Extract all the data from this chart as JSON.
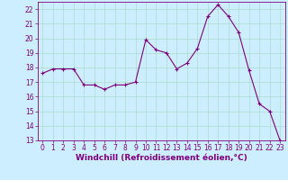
{
  "x": [
    0,
    1,
    2,
    3,
    4,
    5,
    6,
    7,
    8,
    9,
    10,
    11,
    12,
    13,
    14,
    15,
    16,
    17,
    18,
    19,
    20,
    21,
    22,
    23
  ],
  "y": [
    17.6,
    17.9,
    17.9,
    17.9,
    16.8,
    16.8,
    16.5,
    16.8,
    16.8,
    17.0,
    19.9,
    19.2,
    19.0,
    17.9,
    18.3,
    19.3,
    21.5,
    22.3,
    21.5,
    20.4,
    17.8,
    15.5,
    15.0,
    13.0
  ],
  "line_color": "#800080",
  "marker": "+",
  "marker_size": 3,
  "bg_color": "#cceeff",
  "grid_color": "#aaddcc",
  "xlabel": "Windchill (Refroidissement éolien,°C)",
  "xlim_min": -0.5,
  "xlim_max": 23.5,
  "ylim_min": 13,
  "ylim_max": 22.5,
  "yticks": [
    13,
    14,
    15,
    16,
    17,
    18,
    19,
    20,
    21,
    22
  ],
  "xticks": [
    0,
    1,
    2,
    3,
    4,
    5,
    6,
    7,
    8,
    9,
    10,
    11,
    12,
    13,
    14,
    15,
    16,
    17,
    18,
    19,
    20,
    21,
    22,
    23
  ],
  "tick_color": "#800080",
  "font_size": 5.5,
  "xlabel_fontsize": 6.5,
  "line_width": 0.8,
  "marker_edge_width": 0.8
}
